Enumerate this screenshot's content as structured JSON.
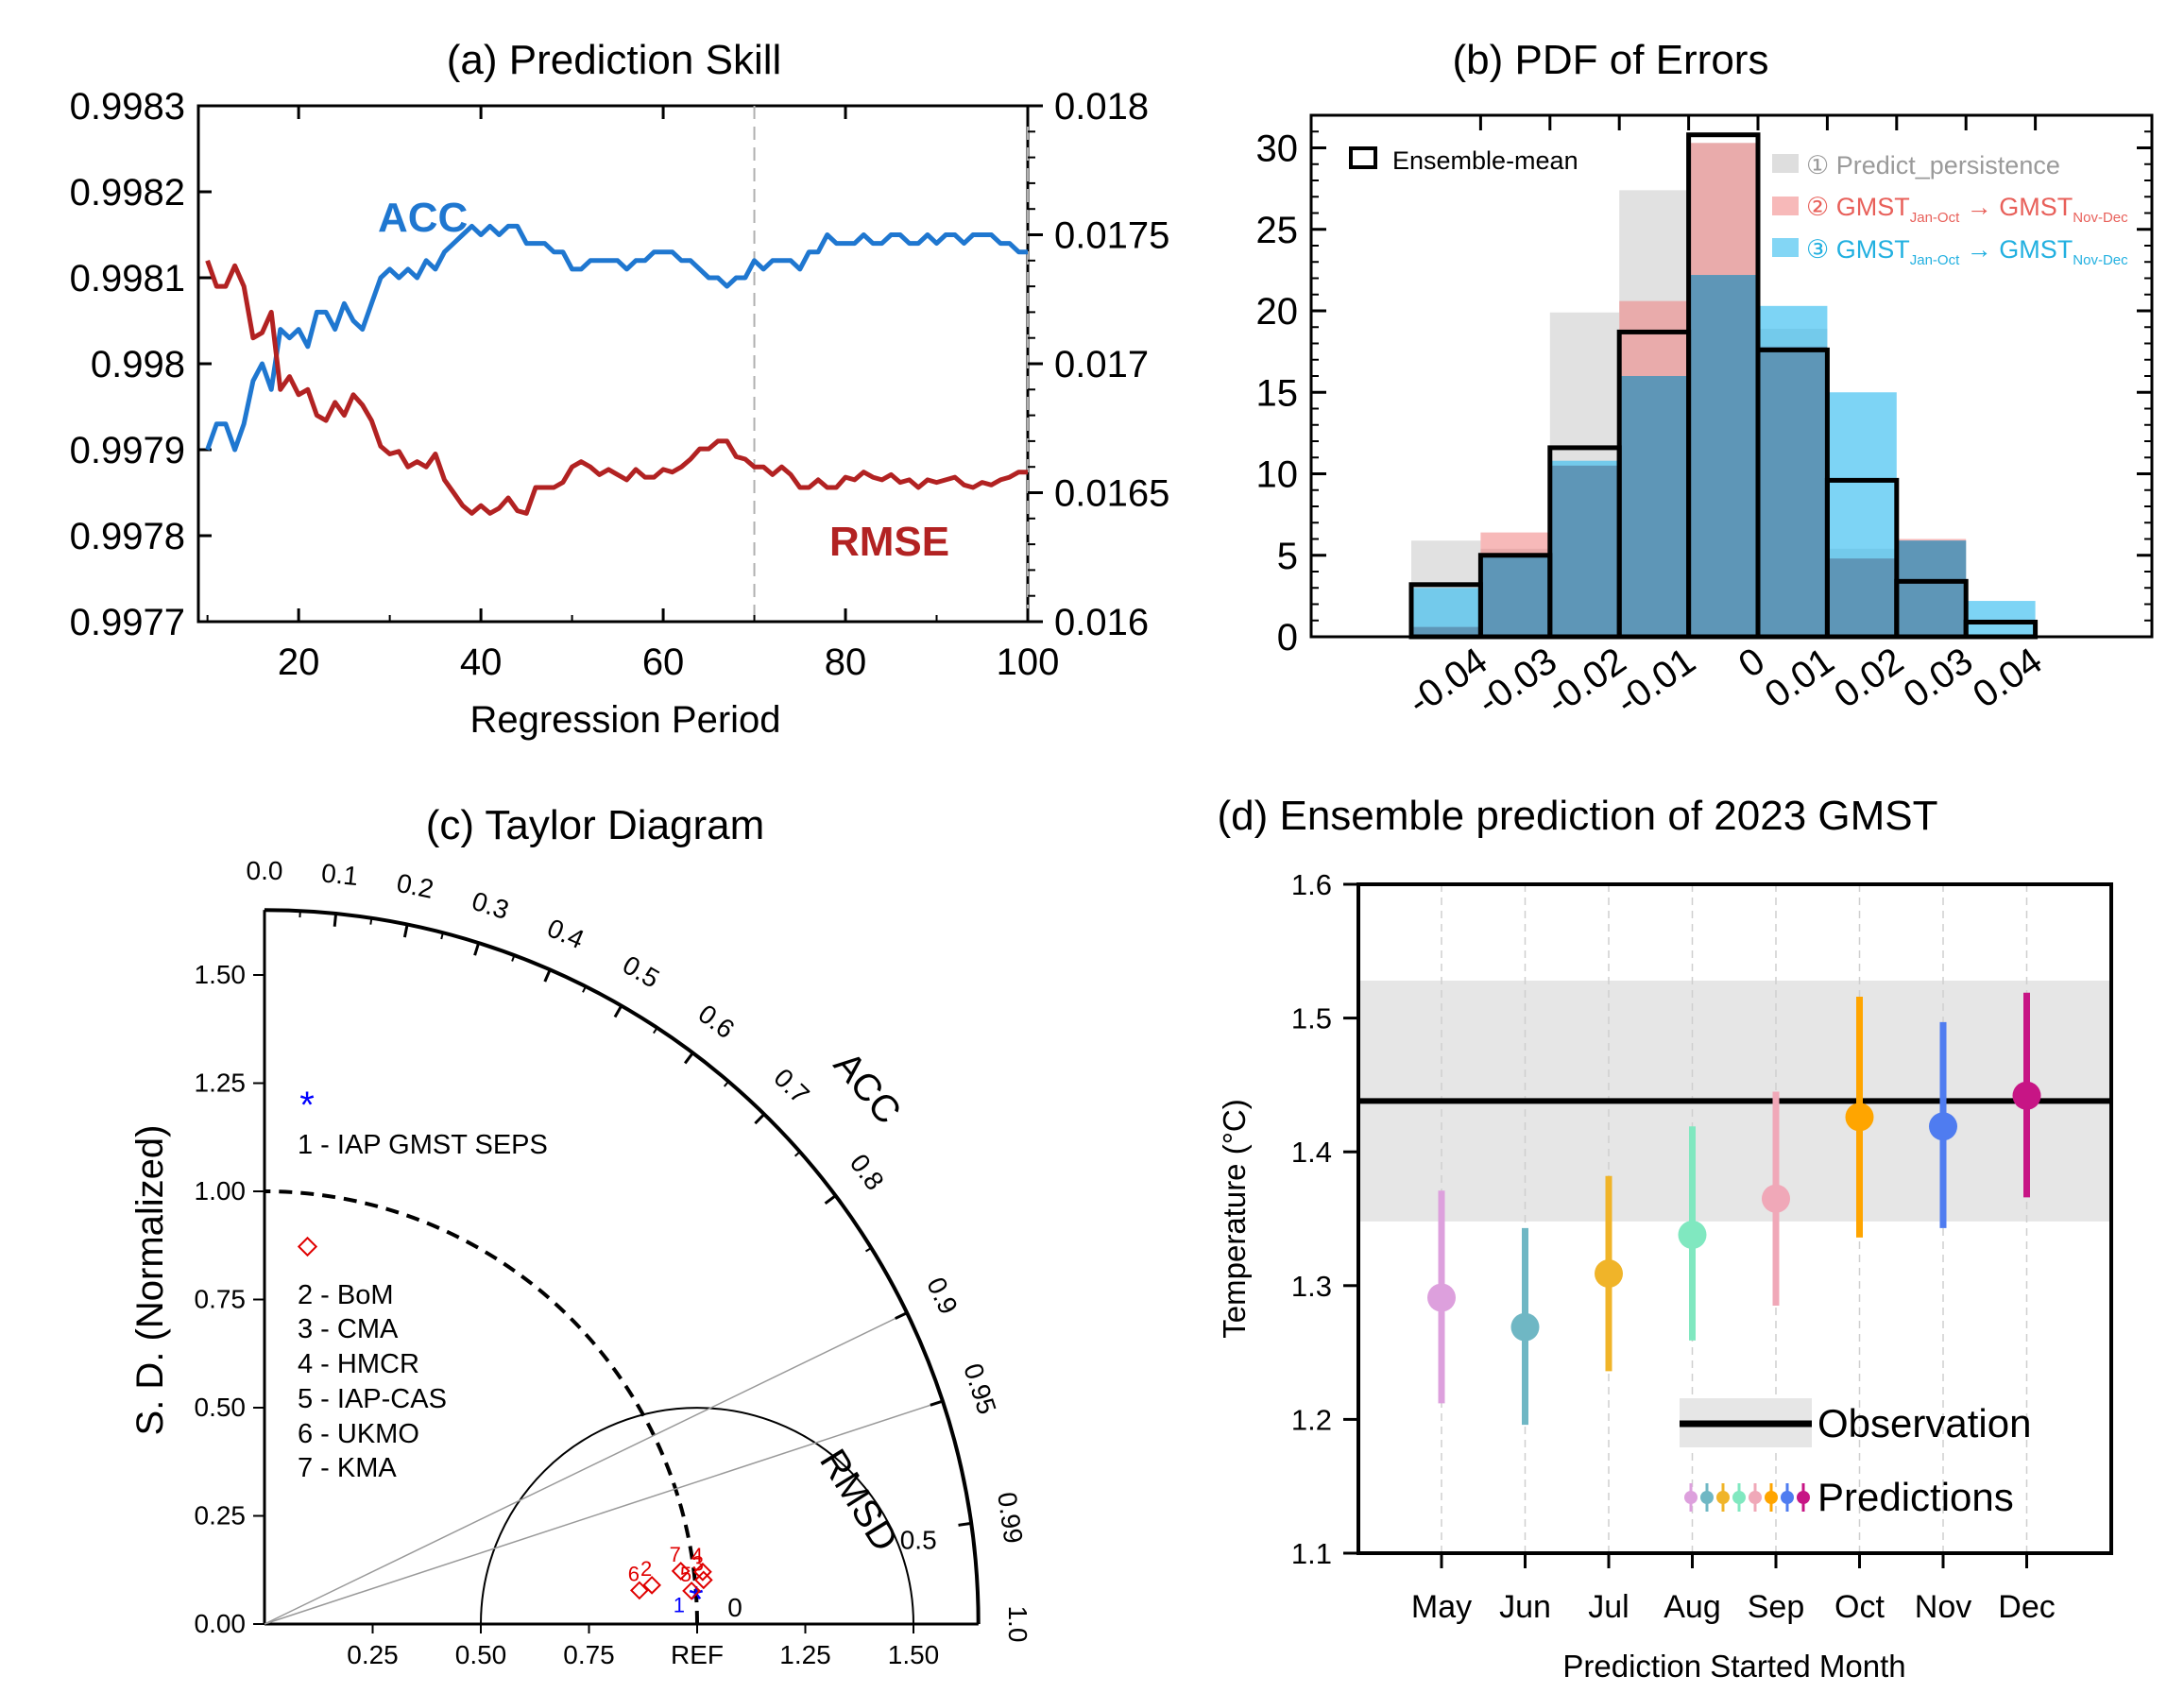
{
  "chart_data": [
    {
      "panel": "a",
      "type": "line",
      "title": "(a) Prediction Skill",
      "xlabel": "Regression Period",
      "ylabel_left": "",
      "ylabel_right": "",
      "xlim": [
        9,
        100
      ],
      "xticks": [
        "20",
        "40",
        "60",
        "80",
        "100"
      ],
      "ylim_left": [
        0.9977,
        0.9983
      ],
      "yticks_left": [
        "0.9983",
        "0.9982",
        "0.9981",
        "0.998",
        "0.9979",
        "0.9978",
        "0.9977"
      ],
      "ylim_right": [
        0.016,
        0.018
      ],
      "yticks_right": [
        "0.018",
        "0.0175",
        "0.017",
        "0.0165",
        "0.016"
      ],
      "vlines": [
        70,
        100
      ],
      "series": [
        {
          "name": "ACC",
          "axis": "left",
          "color": "#1f77d0",
          "x": [
            10,
            11,
            12,
            13,
            14,
            15,
            16,
            17,
            18,
            19,
            20,
            21,
            22,
            23,
            24,
            25,
            26,
            27,
            28,
            29,
            30,
            31,
            32,
            33,
            34,
            35,
            36,
            37,
            38,
            39,
            40,
            41,
            42,
            43,
            44,
            45,
            46,
            47,
            48,
            49,
            50,
            51,
            52,
            53,
            54,
            55,
            56,
            57,
            58,
            59,
            60,
            61,
            62,
            63,
            64,
            65,
            66,
            67,
            68,
            69,
            70,
            71,
            72,
            73,
            74,
            75,
            76,
            77,
            78,
            79,
            80,
            81,
            82,
            83,
            84,
            85,
            86,
            87,
            88,
            89,
            90,
            91,
            92,
            93,
            94,
            95,
            96,
            97,
            98,
            99,
            100
          ],
          "values": [
            0.9979,
            0.99793,
            0.99793,
            0.9979,
            0.99793,
            0.99798,
            0.998,
            0.99797,
            0.99804,
            0.99803,
            0.99804,
            0.99802,
            0.99806,
            0.99806,
            0.99804,
            0.99807,
            0.99805,
            0.99804,
            0.99807,
            0.9981,
            0.99811,
            0.9981,
            0.99811,
            0.9981,
            0.99812,
            0.99811,
            0.99813,
            0.99814,
            0.99815,
            0.99816,
            0.99815,
            0.99816,
            0.99815,
            0.99816,
            0.99816,
            0.99814,
            0.99814,
            0.99814,
            0.99813,
            0.99813,
            0.99811,
            0.99811,
            0.99812,
            0.99812,
            0.99812,
            0.99812,
            0.99811,
            0.99812,
            0.99812,
            0.99813,
            0.99813,
            0.99813,
            0.99812,
            0.99812,
            0.99811,
            0.9981,
            0.9981,
            0.99809,
            0.9981,
            0.9981,
            0.99812,
            0.99811,
            0.99812,
            0.99812,
            0.99812,
            0.99811,
            0.99813,
            0.99813,
            0.99815,
            0.99814,
            0.99814,
            0.99814,
            0.99815,
            0.99814,
            0.99814,
            0.99815,
            0.99815,
            0.99814,
            0.99814,
            0.99815,
            0.99814,
            0.99815,
            0.99815,
            0.99814,
            0.99815,
            0.99815,
            0.99815,
            0.99814,
            0.99814,
            0.99813,
            0.99813
          ]
        },
        {
          "name": "RMSE",
          "axis": "right",
          "color": "#b22222",
          "x": [
            10,
            11,
            12,
            13,
            14,
            15,
            16,
            17,
            18,
            19,
            20,
            21,
            22,
            23,
            24,
            25,
            26,
            27,
            28,
            29,
            30,
            31,
            32,
            33,
            34,
            35,
            36,
            37,
            38,
            39,
            40,
            41,
            42,
            43,
            44,
            45,
            46,
            47,
            48,
            49,
            50,
            51,
            52,
            53,
            54,
            55,
            56,
            57,
            58,
            59,
            60,
            61,
            62,
            63,
            64,
            65,
            66,
            67,
            68,
            69,
            70,
            71,
            72,
            73,
            74,
            75,
            76,
            77,
            78,
            79,
            80,
            81,
            82,
            83,
            84,
            85,
            86,
            87,
            88,
            89,
            90,
            91,
            92,
            93,
            94,
            95,
            96,
            97,
            98,
            99,
            100
          ],
          "values": [
            0.0174,
            0.0173,
            0.0173,
            0.01738,
            0.0173,
            0.0171,
            0.01712,
            0.0172,
            0.0169,
            0.01695,
            0.01688,
            0.0169,
            0.0168,
            0.01678,
            0.01685,
            0.0168,
            0.01688,
            0.01684,
            0.01678,
            0.01668,
            0.01665,
            0.01666,
            0.0166,
            0.01662,
            0.0166,
            0.01665,
            0.01655,
            0.0165,
            0.01645,
            0.01642,
            0.01645,
            0.01642,
            0.01644,
            0.01648,
            0.01643,
            0.01642,
            0.01652,
            0.01652,
            0.01652,
            0.01654,
            0.0166,
            0.01662,
            0.0166,
            0.01657,
            0.01659,
            0.01657,
            0.01655,
            0.01659,
            0.01656,
            0.01656,
            0.01659,
            0.01658,
            0.0166,
            0.01663,
            0.01667,
            0.01667,
            0.0167,
            0.0167,
            0.01664,
            0.01663,
            0.0166,
            0.0166,
            0.01657,
            0.0166,
            0.01657,
            0.01652,
            0.01652,
            0.01655,
            0.01652,
            0.01652,
            0.01656,
            0.01655,
            0.01658,
            0.01656,
            0.01655,
            0.01657,
            0.01654,
            0.01655,
            0.01652,
            0.01655,
            0.01654,
            0.01655,
            0.01656,
            0.01653,
            0.01652,
            0.01654,
            0.01653,
            0.01655,
            0.01656,
            0.01658,
            0.01658
          ]
        }
      ],
      "annotations": [
        "ACC",
        "RMSE"
      ]
    },
    {
      "panel": "b",
      "type": "bar",
      "title": "(b) PDF of Errors",
      "bin_edges": [
        -0.045,
        -0.035,
        -0.025,
        -0.015,
        -0.005,
        0.005,
        0.015,
        0.025,
        0.035,
        0.045
      ],
      "xticks": [
        "-0.04",
        "-0.03",
        "-0.02",
        "-0.01",
        "0",
        "0.01",
        "0.02",
        "0.03",
        "0.04"
      ],
      "yticks": [
        "0",
        "5",
        "10",
        "15",
        "20",
        "25",
        "30"
      ],
      "ylim": [
        0,
        32
      ],
      "series": [
        {
          "name": "Predict_persistence",
          "prefix": "①",
          "color": "#c8c8c8",
          "values": [
            5.9,
            5.4,
            19.9,
            27.4,
            30.3,
            18.9,
            5.4,
            5.9,
            0
          ]
        },
        {
          "name": "GMST",
          "prefix": "②",
          "sub1": "Jan-Oct",
          "arrow": "→",
          "sub2": "Nov-Dec",
          "color": "#f08080",
          "values": [
            0.6,
            6.4,
            10.5,
            20.6,
            30.3,
            17.8,
            4.8,
            6.0,
            0
          ]
        },
        {
          "name": "GMST",
          "prefix": "③",
          "sub1": "Jan-Oct",
          "arrow": "→",
          "sub2": "Nov-Dec",
          "color": "#40c0f0",
          "values": [
            3.0,
            5.0,
            10.8,
            16.0,
            22.2,
            20.3,
            15.0,
            5.9,
            2.2
          ]
        },
        {
          "name": "Ensemble-mean",
          "color": "#000000",
          "values": [
            3.2,
            5.0,
            11.6,
            18.7,
            30.8,
            17.6,
            9.6,
            3.4,
            0.9
          ]
        }
      ]
    },
    {
      "panel": "c",
      "type": "scatter",
      "title": "(c) Taylor Diagram",
      "ylabel": "S. D. (Normalized)",
      "acc_label": "ACC",
      "rmsd_label": "RMSD",
      "sd_ticks": [
        "0.00",
        "0.25",
        "0.50",
        "0.75",
        "1.00",
        "1.25",
        "1.50"
      ],
      "x_ticks": [
        "0.25",
        "0.50",
        "0.75",
        "REF",
        "1.25",
        "1.50"
      ],
      "acc_ticks": [
        "0.0",
        "0.1",
        "0.2",
        "0.3",
        "0.4",
        "0.5",
        "0.6",
        "0.7",
        "0.8",
        "0.9",
        "0.95",
        "0.99",
        "1.0"
      ],
      "rmsd_ticks": [
        "0",
        "0.5"
      ],
      "points": [
        {
          "id": "1",
          "sd": 1.0,
          "acc": 0.9975,
          "color": "#0000ff"
        },
        {
          "id": "2",
          "sd": 0.9,
          "acc": 0.995,
          "color": "#e00000"
        },
        {
          "id": "3",
          "sd": 1.02,
          "acc": 0.995,
          "color": "#e00000"
        },
        {
          "id": "4",
          "sd": 1.02,
          "acc": 0.993,
          "color": "#e00000"
        },
        {
          "id": "5",
          "sd": 0.99,
          "acc": 0.997,
          "color": "#e00000"
        },
        {
          "id": "6",
          "sd": 0.87,
          "acc": 0.996,
          "color": "#e00000"
        },
        {
          "id": "7",
          "sd": 0.97,
          "acc": 0.992,
          "color": "#e00000"
        }
      ],
      "legend": [
        {
          "text": "1 - IAP GMST SEPS",
          "marker": "star",
          "color": "#0000ff"
        },
        {
          "text": "2 - BoM",
          "marker": "diamond",
          "color": "#e00000"
        },
        {
          "text": "3 - CMA"
        },
        {
          "text": "4 - HMCR"
        },
        {
          "text": "5 - IAP-CAS"
        },
        {
          "text": "6 - UKMO"
        },
        {
          "text": "7 - KMA"
        }
      ]
    },
    {
      "panel": "d",
      "type": "scatter",
      "title": "(d) Ensemble prediction of 2023 GMST",
      "xlabel": "Prediction Started Month",
      "ylabel": "Temperature (°C)",
      "ylim": [
        1.1,
        1.6
      ],
      "yticks": [
        "1.6",
        "1.5",
        "1.4",
        "1.3",
        "1.2",
        "1.1"
      ],
      "categories": [
        "May",
        "Jun",
        "Jul",
        "Aug",
        "Sep",
        "Oct",
        "Nov",
        "Dec"
      ],
      "values": [
        1.291,
        1.269,
        1.309,
        1.338,
        1.365,
        1.426,
        1.419,
        1.442
      ],
      "low": [
        1.212,
        1.196,
        1.236,
        1.259,
        1.285,
        1.336,
        1.343,
        1.366
      ],
      "high": [
        1.371,
        1.343,
        1.382,
        1.419,
        1.445,
        1.516,
        1.497,
        1.519
      ],
      "colors": [
        "#dda0dd",
        "#6fb7c4",
        "#f0b429",
        "#80e8c0",
        "#f0a8b8",
        "#ffa500",
        "#4f7cf0",
        "#c71585"
      ],
      "observation": 1.438,
      "observation_band": [
        1.348,
        1.528
      ],
      "legend": [
        "Observation",
        "Predictions"
      ]
    }
  ]
}
